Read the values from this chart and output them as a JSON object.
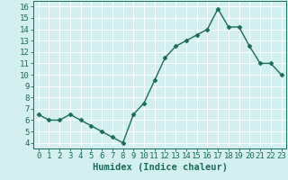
{
  "x": [
    0,
    1,
    2,
    3,
    4,
    5,
    6,
    7,
    8,
    9,
    10,
    11,
    12,
    13,
    14,
    15,
    16,
    17,
    18,
    19,
    20,
    21,
    22,
    23
  ],
  "y": [
    6.5,
    6.0,
    6.0,
    6.5,
    6.0,
    5.5,
    5.0,
    4.5,
    4.0,
    6.5,
    7.5,
    9.5,
    11.5,
    12.5,
    13.0,
    13.5,
    14.0,
    15.8,
    14.2,
    14.2,
    12.5,
    11.0,
    11.0,
    10.0
  ],
  "xlabel": "Humidex (Indice chaleur)",
  "xlim": [
    -0.5,
    23.5
  ],
  "ylim": [
    3.5,
    16.5
  ],
  "yticks": [
    4,
    5,
    6,
    7,
    8,
    9,
    10,
    11,
    12,
    13,
    14,
    15,
    16
  ],
  "xticks": [
    0,
    1,
    2,
    3,
    4,
    5,
    6,
    7,
    8,
    9,
    10,
    11,
    12,
    13,
    14,
    15,
    16,
    17,
    18,
    19,
    20,
    21,
    22,
    23
  ],
  "line_color": "#1a6b5a",
  "marker_color": "#1a6b5a",
  "bg_color": "#d4efef",
  "grid_color": "#ffffff",
  "tick_color": "#1a6b5a",
  "label_color": "#1a6b5a",
  "font_size": 6.5,
  "xlabel_font_size": 7.5,
  "marker_size": 2.5,
  "linewidth": 1.0
}
